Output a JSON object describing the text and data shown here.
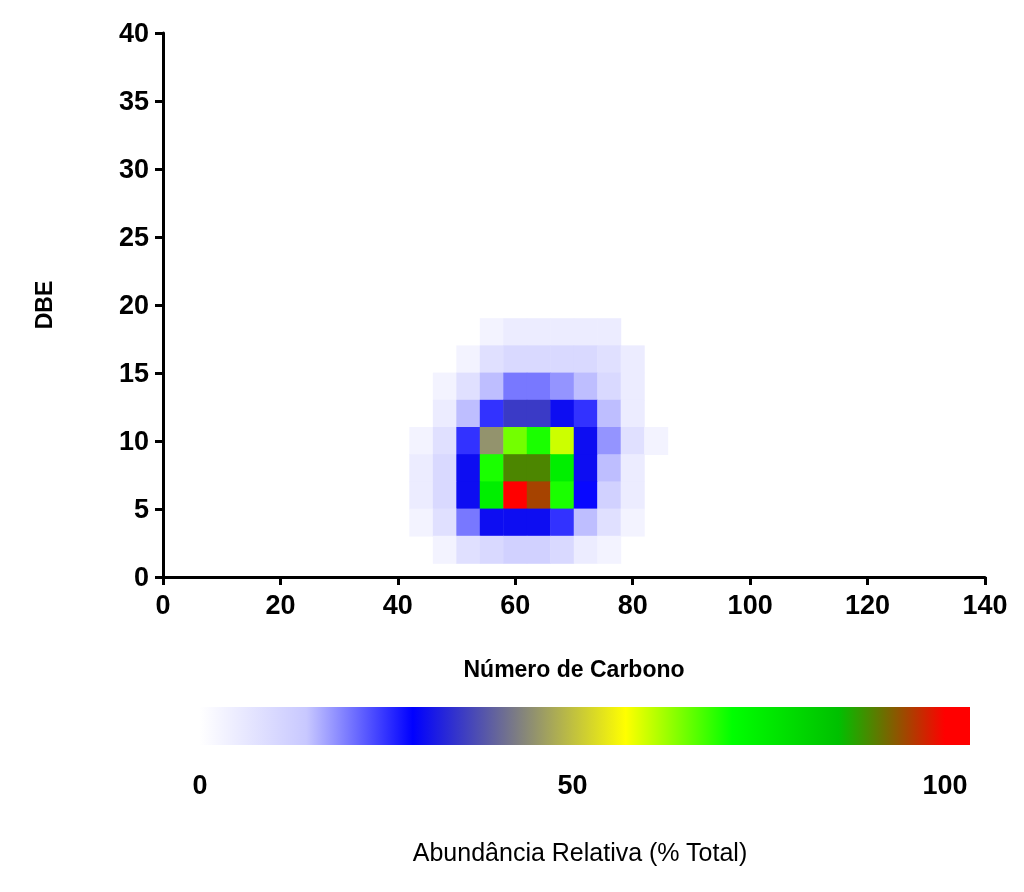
{
  "chart_data": {
    "type": "scatter",
    "xlabel": "Número de Carbono",
    "ylabel": "DBE",
    "clabel": "Abundância Relativa (% Total)",
    "marker": "square",
    "grid": false,
    "xlim": [
      0,
      140
    ],
    "xticks": [
      0,
      20,
      40,
      60,
      80,
      100,
      120,
      140
    ],
    "ylim": [
      0,
      40
    ],
    "yticks": [
      0,
      5,
      10,
      15,
      20,
      25,
      30,
      35,
      40
    ],
    "clim": [
      0,
      100
    ],
    "cticks": [
      0,
      50,
      100
    ],
    "x": [
      56,
      60,
      64,
      68,
      72,
      76,
      52,
      56,
      60,
      64,
      68,
      72,
      76,
      80,
      48,
      52,
      56,
      60,
      64,
      68,
      72,
      76,
      80,
      48,
      52,
      56,
      60,
      64,
      68,
      72,
      76,
      80,
      44,
      48,
      52,
      56,
      60,
      64,
      68,
      72,
      76,
      80,
      84,
      44,
      48,
      52,
      56,
      60,
      64,
      68,
      72,
      76,
      80,
      44,
      48,
      52,
      56,
      60,
      64,
      68,
      72,
      76,
      80,
      44,
      48,
      52,
      56,
      60,
      64,
      68,
      72,
      76,
      80,
      48,
      52,
      56,
      60,
      64,
      68,
      72,
      76
    ],
    "values": [
      18,
      18,
      18,
      18,
      18,
      18,
      16,
      16,
      16,
      16,
      16,
      16,
      16,
      16,
      14,
      14,
      14,
      14,
      14,
      14,
      14,
      14,
      14,
      12,
      12,
      12,
      12,
      12,
      12,
      12,
      12,
      12,
      10,
      10,
      10,
      10,
      10,
      10,
      10,
      10,
      10,
      10,
      10,
      8,
      8,
      8,
      8,
      8,
      8,
      8,
      8,
      8,
      8,
      6,
      6,
      6,
      6,
      6,
      6,
      6,
      6,
      6,
      6,
      4,
      4,
      4,
      4,
      4,
      4,
      4,
      4,
      4,
      4,
      2,
      2,
      2,
      2,
      2,
      2,
      2,
      2
    ],
    "cvalues": [
      3,
      5,
      5,
      5,
      5,
      5,
      3,
      8,
      10,
      10,
      10,
      10,
      8,
      5,
      3,
      8,
      15,
      20,
      20,
      18,
      15,
      10,
      5,
      5,
      15,
      25,
      35,
      35,
      30,
      25,
      15,
      5,
      3,
      8,
      25,
      45,
      65,
      70,
      60,
      30,
      18,
      8,
      3,
      5,
      10,
      30,
      70,
      90,
      90,
      75,
      30,
      15,
      5,
      5,
      10,
      30,
      75,
      100,
      95,
      70,
      28,
      12,
      5,
      3,
      8,
      20,
      30,
      30,
      30,
      25,
      15,
      8,
      3,
      3,
      8,
      10,
      12,
      12,
      10,
      5,
      3
    ]
  }
}
